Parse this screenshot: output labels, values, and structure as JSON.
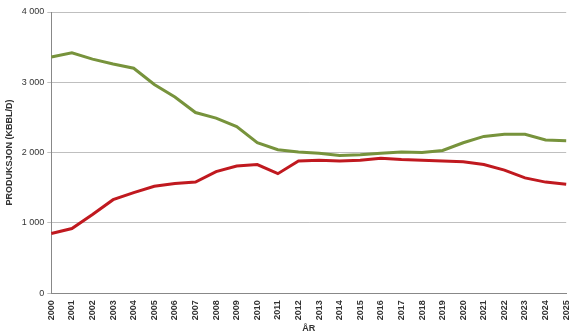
{
  "chart_data": {
    "type": "line",
    "x_label": "ÅR",
    "y_label": "PRODUKSJON (KBBL/D)",
    "categories": [
      "2000",
      "2001",
      "2002",
      "2003",
      "2004",
      "2005",
      "2006",
      "2007",
      "2008",
      "2009",
      "2010",
      "2011",
      "2012",
      "2013",
      "2014",
      "2015",
      "2016",
      "2017",
      "2018",
      "2019",
      "2020",
      "2021",
      "2022",
      "2023",
      "2024",
      "2025"
    ],
    "series": [
      {
        "color": "#77933c",
        "values": [
          3360,
          3420,
          3330,
          3260,
          3200,
          2970,
          2790,
          2570,
          2490,
          2370,
          2140,
          2040,
          2010,
          1990,
          1960,
          1970,
          1990,
          2010,
          2000,
          2030,
          2140,
          2230,
          2260,
          2260,
          2180,
          2170
        ]
      },
      {
        "color": "#c0191f",
        "values": [
          850,
          920,
          1120,
          1330,
          1430,
          1520,
          1560,
          1580,
          1730,
          1810,
          1830,
          1700,
          1880,
          1890,
          1880,
          1890,
          1920,
          1900,
          1890,
          1880,
          1870,
          1830,
          1750,
          1640,
          1580,
          1550
        ]
      }
    ],
    "ylim": [
      0,
      4000
    ],
    "yticks": [
      0,
      {
        "value": 1000,
        "label": "1 000"
      },
      {
        "value": 2000,
        "label": "2 000"
      },
      {
        "value": 3000,
        "label": "3 000"
      },
      {
        "value": 4000,
        "label": "4 000"
      }
    ],
    "grid": true
  }
}
